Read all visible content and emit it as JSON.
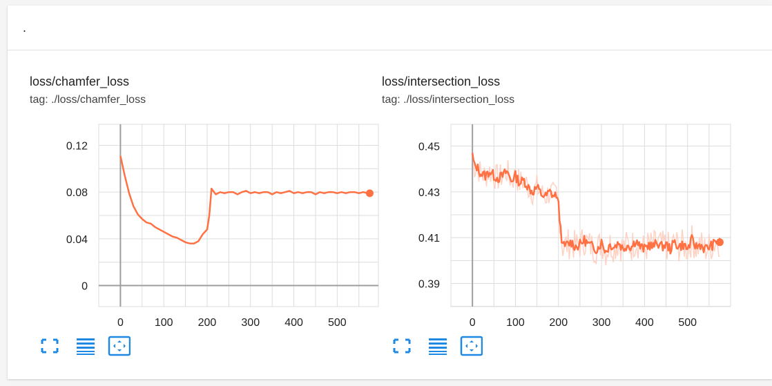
{
  "group": {
    "title": "."
  },
  "panels": [
    {
      "title": "loss/chamfer_loss",
      "tag": "tag: ./loss/chamfer_loss"
    },
    {
      "title": "loss/intersection_loss",
      "tag": "tag: ./loss/intersection_loss"
    }
  ],
  "toolbar_icons": [
    "fit-screen-icon",
    "toggle-log-scale-icon",
    "fit-domain-icon"
  ],
  "colors": {
    "series": "#ff7043",
    "series_raw": "#ffccbc",
    "grid": "#dcdcdc",
    "axis": "#9e9e9e",
    "accent": "#1e88e5"
  },
  "chart_data": [
    {
      "type": "line",
      "title": "loss/chamfer_loss",
      "xlim": [
        -50,
        595
      ],
      "ylim": [
        -0.018,
        0.138
      ],
      "xticks": [
        0,
        100,
        200,
        300,
        400,
        500
      ],
      "yticks": [
        0,
        0.04,
        0.08,
        0.12
      ],
      "ytick_labels": [
        "0",
        "0.04",
        "0.08",
        "0.12"
      ],
      "grid": true,
      "series": [
        {
          "values_x": [
            0,
            10,
            20,
            30,
            40,
            50,
            60,
            70,
            80,
            90,
            100,
            110,
            120,
            130,
            140,
            150,
            160,
            170,
            180,
            190,
            200,
            205,
            210,
            220,
            230,
            240,
            250,
            260,
            270,
            280,
            290,
            300,
            310,
            320,
            330,
            340,
            350,
            360,
            370,
            380,
            390,
            400,
            410,
            420,
            430,
            440,
            450,
            460,
            470,
            480,
            490,
            500,
            510,
            520,
            530,
            540,
            550,
            560,
            570,
            575
          ],
          "values_y": [
            0.111,
            0.094,
            0.079,
            0.068,
            0.061,
            0.057,
            0.054,
            0.053,
            0.05,
            0.048,
            0.046,
            0.044,
            0.042,
            0.041,
            0.039,
            0.037,
            0.036,
            0.036,
            0.038,
            0.044,
            0.048,
            0.06,
            0.083,
            0.078,
            0.08,
            0.079,
            0.08,
            0.08,
            0.078,
            0.08,
            0.081,
            0.079,
            0.08,
            0.079,
            0.08,
            0.08,
            0.078,
            0.08,
            0.079,
            0.08,
            0.081,
            0.079,
            0.08,
            0.079,
            0.08,
            0.08,
            0.078,
            0.08,
            0.079,
            0.08,
            0.08,
            0.079,
            0.08,
            0.079,
            0.08,
            0.08,
            0.079,
            0.08,
            0.079,
            0.079
          ]
        }
      ]
    },
    {
      "type": "line",
      "title": "loss/intersection_loss",
      "xlim": [
        -50,
        600
      ],
      "ylim": [
        0.3799,
        0.4595
      ],
      "xticks": [
        0,
        100,
        200,
        300,
        400,
        500
      ],
      "yticks": [
        0.39,
        0.41,
        0.43,
        0.45
      ],
      "ytick_labels": [
        "0.39",
        "0.41",
        "0.43",
        "0.45"
      ],
      "grid": true,
      "series": [
        {
          "values_x": [
            0,
            5,
            10,
            20,
            30,
            40,
            50,
            60,
            70,
            80,
            90,
            100,
            110,
            120,
            130,
            140,
            150,
            160,
            170,
            180,
            190,
            195,
            200,
            205,
            210,
            220,
            230,
            240,
            250,
            260,
            270,
            280,
            290,
            300,
            310,
            320,
            330,
            340,
            350,
            360,
            370,
            380,
            390,
            400,
            410,
            420,
            430,
            440,
            450,
            460,
            470,
            480,
            490,
            500,
            510,
            520,
            530,
            540,
            550,
            560,
            570,
            575
          ],
          "values_y": [
            0.446,
            0.441,
            0.441,
            0.438,
            0.437,
            0.439,
            0.437,
            0.436,
            0.437,
            0.439,
            0.435,
            0.437,
            0.434,
            0.435,
            0.432,
            0.43,
            0.432,
            0.429,
            0.428,
            0.43,
            0.428,
            0.429,
            0.424,
            0.414,
            0.406,
            0.407,
            0.408,
            0.406,
            0.407,
            0.409,
            0.407,
            0.406,
            0.405,
            0.408,
            0.404,
            0.407,
            0.406,
            0.408,
            0.405,
            0.407,
            0.406,
            0.409,
            0.406,
            0.405,
            0.407,
            0.406,
            0.408,
            0.406,
            0.407,
            0.405,
            0.408,
            0.406,
            0.407,
            0.405,
            0.409,
            0.406,
            0.407,
            0.405,
            0.406,
            0.407,
            0.409,
            0.408
          ]
        }
      ]
    }
  ]
}
